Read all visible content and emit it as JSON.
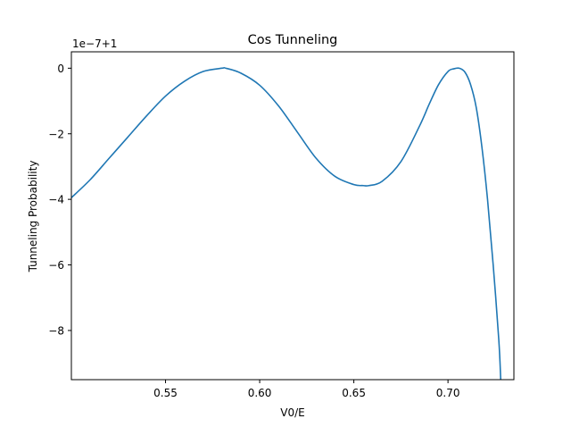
{
  "chart_data": {
    "type": "line",
    "title": "Cos Tunneling",
    "xlabel": "V0/E",
    "ylabel": "Tunneling Probability",
    "offset_label": "1e−7+1",
    "xlim": [
      0.5,
      0.735
    ],
    "ylim": [
      -9.5,
      0.5
    ],
    "x_ticks": [
      0.55,
      0.6,
      0.65,
      0.7
    ],
    "x_tick_labels": [
      "0.55",
      "0.60",
      "0.65",
      "0.70"
    ],
    "y_ticks": [
      0,
      -2,
      -4,
      -6,
      -8
    ],
    "y_tick_labels": [
      "0",
      "−2",
      "−4",
      "−6",
      "−8"
    ],
    "grid": false,
    "series": [
      {
        "color": "#1f77b4",
        "x": [
          0.5,
          0.51,
          0.52,
          0.53,
          0.54,
          0.55,
          0.56,
          0.57,
          0.58,
          0.582,
          0.59,
          0.6,
          0.61,
          0.62,
          0.63,
          0.64,
          0.65,
          0.655,
          0.658,
          0.665,
          0.675,
          0.685,
          0.69,
          0.695,
          0.7,
          0.703,
          0.706,
          0.709,
          0.712,
          0.715,
          0.718,
          0.721,
          0.724,
          0.727,
          0.728
        ],
        "y": [
          -3.95,
          -3.4,
          -2.75,
          -2.1,
          -1.45,
          -0.85,
          -0.4,
          -0.1,
          0.0,
          0.0,
          -0.15,
          -0.52,
          -1.15,
          -1.95,
          -2.75,
          -3.3,
          -3.55,
          -3.58,
          -3.58,
          -3.45,
          -2.85,
          -1.75,
          -1.1,
          -0.5,
          -0.1,
          -0.02,
          0.0,
          -0.12,
          -0.5,
          -1.2,
          -2.4,
          -4.0,
          -6.0,
          -8.3,
          -9.5
        ]
      }
    ]
  }
}
